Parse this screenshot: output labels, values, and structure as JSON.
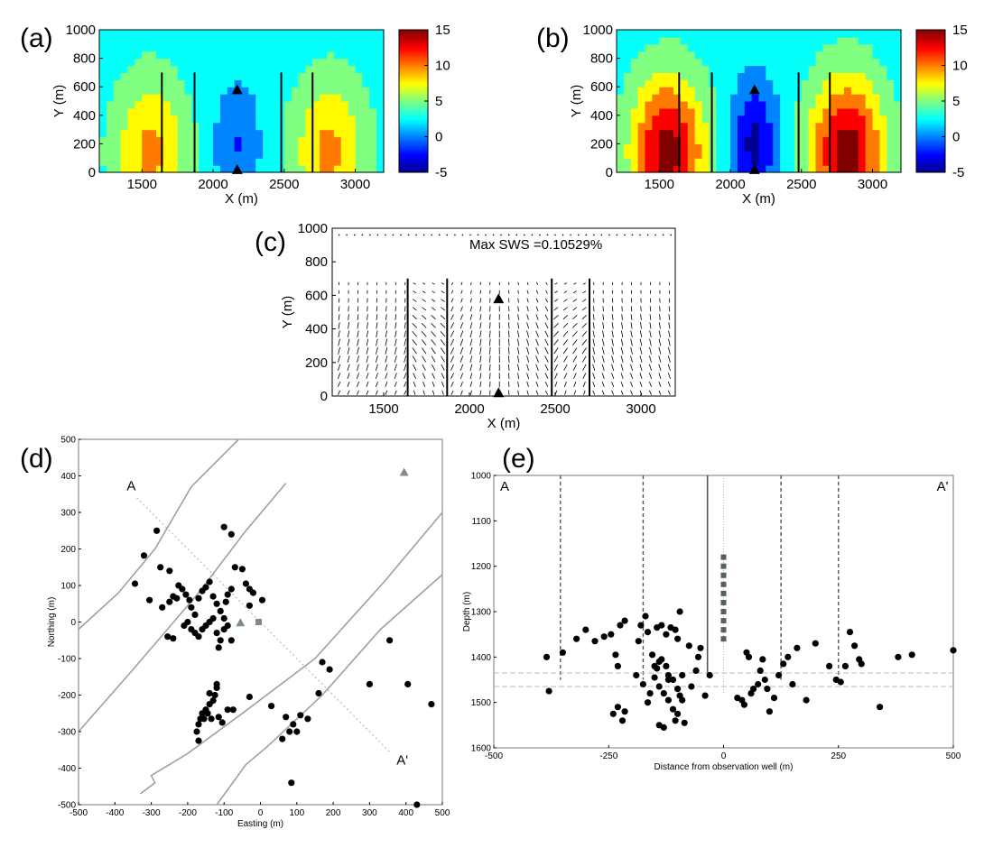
{
  "panels": {
    "a": {
      "label": "(a)"
    },
    "b": {
      "label": "(b)"
    },
    "c": {
      "label": "(c)"
    },
    "d": {
      "label": "(d)"
    },
    "e": {
      "label": "(e)"
    }
  },
  "chart_data": [
    {
      "id": "a",
      "type": "heatmap",
      "xlabel": "X (m)",
      "ylabel": "Y (m)",
      "xlim": [
        1200,
        3200
      ],
      "ylim": [
        0,
        1000
      ],
      "xticks": [
        "1500",
        "2000",
        "2500",
        "3000"
      ],
      "yticks": [
        "0",
        "200",
        "400",
        "600",
        "800",
        "1000"
      ],
      "colorbar_ticks": [
        "15",
        "10",
        "5",
        "0",
        "-5"
      ],
      "colorbar_range": [
        -5,
        15
      ],
      "faults_x": [
        1640,
        1870,
        2480,
        2700
      ],
      "triangles": [
        {
          "x": 2170,
          "y": 580
        },
        {
          "x": 2170,
          "y": 20
        }
      ],
      "amplitude": 0.55
    },
    {
      "id": "b",
      "type": "heatmap",
      "xlabel": "X (m)",
      "ylabel": "Y (m)",
      "xlim": [
        1200,
        3200
      ],
      "ylim": [
        0,
        1000
      ],
      "xticks": [
        "1500",
        "2000",
        "2500",
        "3000"
      ],
      "yticks": [
        "0",
        "200",
        "400",
        "600",
        "800",
        "1000"
      ],
      "colorbar_ticks": [
        "15",
        "10",
        "5",
        "0",
        "-5"
      ],
      "colorbar_range": [
        -5,
        15
      ],
      "faults_x": [
        1640,
        1870,
        2480,
        2700
      ],
      "triangles": [
        {
          "x": 2170,
          "y": 580
        },
        {
          "x": 2170,
          "y": 20
        }
      ],
      "amplitude": 1.0
    },
    {
      "id": "c",
      "type": "quiver",
      "annotation": "Max SWS =0.10529%",
      "xlabel": "X (m)",
      "ylabel": "Y (m)",
      "xlim": [
        1200,
        3200
      ],
      "ylim": [
        0,
        1000
      ],
      "xticks": [
        "1500",
        "2000",
        "2500",
        "3000"
      ],
      "yticks": [
        "0",
        "200",
        "400",
        "600",
        "800",
        "1000"
      ],
      "faults_x": [
        1640,
        1870,
        2480,
        2700
      ],
      "triangles": [
        {
          "x": 2170,
          "y": 580
        },
        {
          "x": 2170,
          "y": 20
        }
      ]
    },
    {
      "id": "d",
      "type": "scatter",
      "xlabel": "Easting (m)",
      "ylabel": "Northing (m)",
      "xlim": [
        -500,
        500
      ],
      "ylim": [
        -500,
        500
      ],
      "xticks": [
        "-500",
        "-400",
        "-300",
        "-200",
        "-100",
        "0",
        "100",
        "200",
        "300",
        "400",
        "500"
      ],
      "yticks": [
        "500",
        "400",
        "300",
        "200",
        "100",
        "0",
        "-100",
        "-200",
        "-300",
        "-400",
        "-500"
      ],
      "section_labels": [
        "A",
        "A'"
      ],
      "section_line": [
        [
          -340,
          340
        ],
        [
          360,
          -360
        ]
      ],
      "fault_traces": [
        [
          [
            -500,
            -20
          ],
          [
            -390,
            80
          ],
          [
            -290,
            200
          ],
          [
            -190,
            370
          ],
          [
            -60,
            500
          ]
        ],
        [
          [
            -500,
            -300
          ],
          [
            -350,
            -130
          ],
          [
            -170,
            80
          ],
          [
            -40,
            250
          ],
          [
            70,
            380
          ]
        ],
        [
          [
            -330,
            -470
          ],
          [
            -290,
            -440
          ],
          [
            -300,
            -420
          ],
          [
            -200,
            -360
          ],
          [
            -50,
            -250
          ],
          [
            150,
            -100
          ],
          [
            340,
            110
          ],
          [
            500,
            300
          ]
        ],
        [
          [
            -120,
            -500
          ],
          [
            -40,
            -390
          ],
          [
            20,
            -340
          ],
          [
            170,
            -200
          ],
          [
            330,
            -20
          ],
          [
            500,
            130
          ]
        ]
      ],
      "points": [
        [
          -285,
          250
        ],
        [
          -320,
          182
        ],
        [
          -345,
          105
        ],
        [
          -305,
          60
        ],
        [
          -275,
          150
        ],
        [
          -250,
          140
        ],
        [
          -240,
          70
        ],
        [
          -230,
          65
        ],
        [
          -270,
          40
        ],
        [
          -250,
          55
        ],
        [
          -225,
          100
        ],
        [
          -215,
          90
        ],
        [
          -205,
          75
        ],
        [
          -195,
          60
        ],
        [
          -190,
          40
        ],
        [
          -180,
          20
        ],
        [
          -170,
          65
        ],
        [
          -160,
          85
        ],
        [
          -150,
          95
        ],
        [
          -140,
          110
        ],
        [
          -130,
          70
        ],
        [
          -120,
          50
        ],
        [
          -110,
          30
        ],
        [
          -100,
          10
        ],
        [
          -95,
          55
        ],
        [
          -90,
          75
        ],
        [
          -80,
          90
        ],
        [
          -70,
          150
        ],
        [
          -50,
          145
        ],
        [
          -40,
          105
        ],
        [
          -30,
          90
        ],
        [
          -20,
          80
        ],
        [
          -30,
          45
        ],
        [
          5,
          60
        ],
        [
          -100,
          260
        ],
        [
          -80,
          240
        ],
        [
          -255,
          -40
        ],
        [
          -240,
          -45
        ],
        [
          -210,
          -10
        ],
        [
          -200,
          0
        ],
        [
          -190,
          -20
        ],
        [
          -180,
          -30
        ],
        [
          -170,
          -40
        ],
        [
          -160,
          -20
        ],
        [
          -150,
          -10
        ],
        [
          -140,
          0
        ],
        [
          -130,
          10
        ],
        [
          -120,
          -30
        ],
        [
          -110,
          -50
        ],
        [
          -100,
          -20
        ],
        [
          -90,
          -10
        ],
        [
          -80,
          -50
        ],
        [
          -115,
          -70
        ],
        [
          -120,
          -180
        ],
        [
          -125,
          -200
        ],
        [
          -130,
          -215
        ],
        [
          -140,
          -225
        ],
        [
          -150,
          -240
        ],
        [
          -160,
          -250
        ],
        [
          -165,
          -265
        ],
        [
          -170,
          -280
        ],
        [
          -175,
          -300
        ],
        [
          -170,
          -325
        ],
        [
          -155,
          -265
        ],
        [
          -145,
          -250
        ],
        [
          -135,
          -265
        ],
        [
          -115,
          -260
        ],
        [
          -105,
          -275
        ],
        [
          -90,
          -240
        ],
        [
          -75,
          -240
        ],
        [
          -140,
          -195
        ],
        [
          -120,
          -170
        ],
        [
          -30,
          -205
        ],
        [
          30,
          -230
        ],
        [
          60,
          -320
        ],
        [
          70,
          -260
        ],
        [
          90,
          -280
        ],
        [
          100,
          -300
        ],
        [
          110,
          -255
        ],
        [
          130,
          -265
        ],
        [
          170,
          -110
        ],
        [
          190,
          -130
        ],
        [
          160,
          -195
        ],
        [
          300,
          -170
        ],
        [
          355,
          -50
        ],
        [
          405,
          -170
        ],
        [
          470,
          -225
        ],
        [
          85,
          -440
        ],
        [
          430,
          -500
        ],
        [
          80,
          -300
        ]
      ],
      "gray_triangles": [
        [
          -55,
          -2
        ],
        [
          395,
          410
        ]
      ],
      "gray_squares": [
        [
          -5,
          0
        ]
      ]
    },
    {
      "id": "e",
      "type": "scatter",
      "xlabel": "Distance from observation well (m)",
      "ylabel": "Depth (m)",
      "xlim": [
        -500,
        500
      ],
      "ylim": [
        1600,
        1000
      ],
      "xticks": [
        "-500",
        "-250",
        "0",
        "250",
        "500"
      ],
      "yticks": [
        "1000",
        "1100",
        "1200",
        "1300",
        "1400",
        "1500",
        "1600"
      ],
      "section_labels": [
        "A",
        "A'"
      ],
      "dashed_faults_x": [
        -355,
        -175,
        125,
        250
      ],
      "solid_well_x": -35,
      "dotted_well_x": 0,
      "horizontal_dashed_y": [
        1435,
        1465
      ],
      "points": [
        [
          -385,
          1400
        ],
        [
          -380,
          1475
        ],
        [
          -350,
          1390
        ],
        [
          -320,
          1360
        ],
        [
          -300,
          1340
        ],
        [
          -280,
          1365
        ],
        [
          -260,
          1355
        ],
        [
          -245,
          1350
        ],
        [
          -235,
          1395
        ],
        [
          -230,
          1420
        ],
        [
          -225,
          1330
        ],
        [
          -215,
          1320
        ],
        [
          -240,
          1525
        ],
        [
          -230,
          1510
        ],
        [
          -215,
          1520
        ],
        [
          -220,
          1540
        ],
        [
          -190,
          1440
        ],
        [
          -185,
          1365
        ],
        [
          -180,
          1330
        ],
        [
          -170,
          1310
        ],
        [
          -165,
          1345
        ],
        [
          -155,
          1395
        ],
        [
          -150,
          1420
        ],
        [
          -145,
          1335
        ],
        [
          -135,
          1330
        ],
        [
          -125,
          1350
        ],
        [
          -115,
          1335
        ],
        [
          -105,
          1340
        ],
        [
          -100,
          1360
        ],
        [
          -95,
          1300
        ],
        [
          -175,
          1460
        ],
        [
          -165,
          1500
        ],
        [
          -160,
          1480
        ],
        [
          -150,
          1445
        ],
        [
          -145,
          1425
        ],
        [
          -140,
          1410
        ],
        [
          -135,
          1405
        ],
        [
          -125,
          1420
        ],
        [
          -120,
          1440
        ],
        [
          -110,
          1450
        ],
        [
          -100,
          1470
        ],
        [
          -95,
          1485
        ],
        [
          -90,
          1440
        ],
        [
          -140,
          1465
        ],
        [
          -130,
          1480
        ],
        [
          -120,
          1495
        ],
        [
          -110,
          1515
        ],
        [
          -100,
          1525
        ],
        [
          -140,
          1550
        ],
        [
          -130,
          1555
        ],
        [
          -90,
          1495
        ],
        [
          -70,
          1465
        ],
        [
          -60,
          1430
        ],
        [
          -55,
          1400
        ],
        [
          -50,
          1380
        ],
        [
          -40,
          1485
        ],
        [
          -30,
          1440
        ],
        [
          -85,
          1545
        ],
        [
          -105,
          1540
        ],
        [
          -75,
          1375
        ],
        [
          30,
          1490
        ],
        [
          45,
          1505
        ],
        [
          50,
          1390
        ],
        [
          55,
          1400
        ],
        [
          60,
          1480
        ],
        [
          65,
          1470
        ],
        [
          75,
          1460
        ],
        [
          80,
          1430
        ],
        [
          85,
          1405
        ],
        [
          90,
          1450
        ],
        [
          95,
          1470
        ],
        [
          100,
          1520
        ],
        [
          110,
          1490
        ],
        [
          120,
          1440
        ],
        [
          130,
          1415
        ],
        [
          140,
          1400
        ],
        [
          150,
          1460
        ],
        [
          160,
          1380
        ],
        [
          180,
          1495
        ],
        [
          200,
          1370
        ],
        [
          230,
          1420
        ],
        [
          245,
          1450
        ],
        [
          255,
          1455
        ],
        [
          265,
          1420
        ],
        [
          275,
          1345
        ],
        [
          285,
          1375
        ],
        [
          295,
          1405
        ],
        [
          300,
          1415
        ],
        [
          340,
          1510
        ],
        [
          380,
          1400
        ],
        [
          410,
          1395
        ],
        [
          500,
          1385
        ],
        [
          40,
          1495
        ],
        [
          -120,
          1450
        ]
      ],
      "gray_squares_x": 0,
      "gray_squares_y": [
        1180,
        1200,
        1220,
        1240,
        1260,
        1280,
        1300,
        1320,
        1340,
        1360
      ]
    }
  ]
}
